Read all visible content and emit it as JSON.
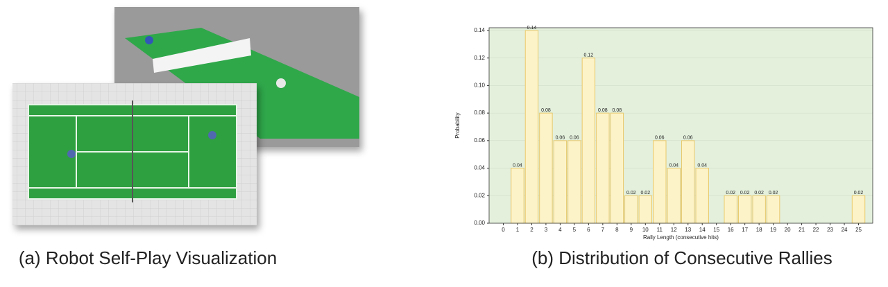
{
  "chart_data": {
    "type": "bar",
    "x": [
      1,
      2,
      3,
      4,
      5,
      6,
      7,
      8,
      9,
      10,
      11,
      12,
      13,
      14,
      16,
      17,
      18,
      19,
      25
    ],
    "values": [
      0.04,
      0.14,
      0.08,
      0.06,
      0.06,
      0.12,
      0.08,
      0.08,
      0.02,
      0.02,
      0.06,
      0.04,
      0.06,
      0.04,
      0.02,
      0.02,
      0.02,
      0.02,
      0.02
    ],
    "color": "#fdf3c8",
    "edge_color": "#e8c96b",
    "background": "#e4f0dc",
    "xlabel": "Rally Length (consecutive hits)",
    "ylabel": "Probability",
    "xlim": [
      -1,
      26
    ],
    "xticks": [
      0,
      1,
      2,
      3,
      4,
      5,
      6,
      7,
      8,
      9,
      10,
      11,
      12,
      13,
      14,
      15,
      16,
      17,
      18,
      19,
      20,
      21,
      22,
      23,
      24,
      25
    ],
    "ylim": [
      0,
      0.142
    ],
    "yticks": [
      {
        "value": 0,
        "label": "0.00"
      },
      0.02,
      0.04,
      0.06,
      0.08,
      {
        "value": 0.1,
        "label": "0.10"
      },
      0.12,
      0.14
    ],
    "grid": true
  },
  "captions": [
    "(a) Robot Self-Play Visualization",
    "(b) Distribution of Consecutive Rallies"
  ]
}
